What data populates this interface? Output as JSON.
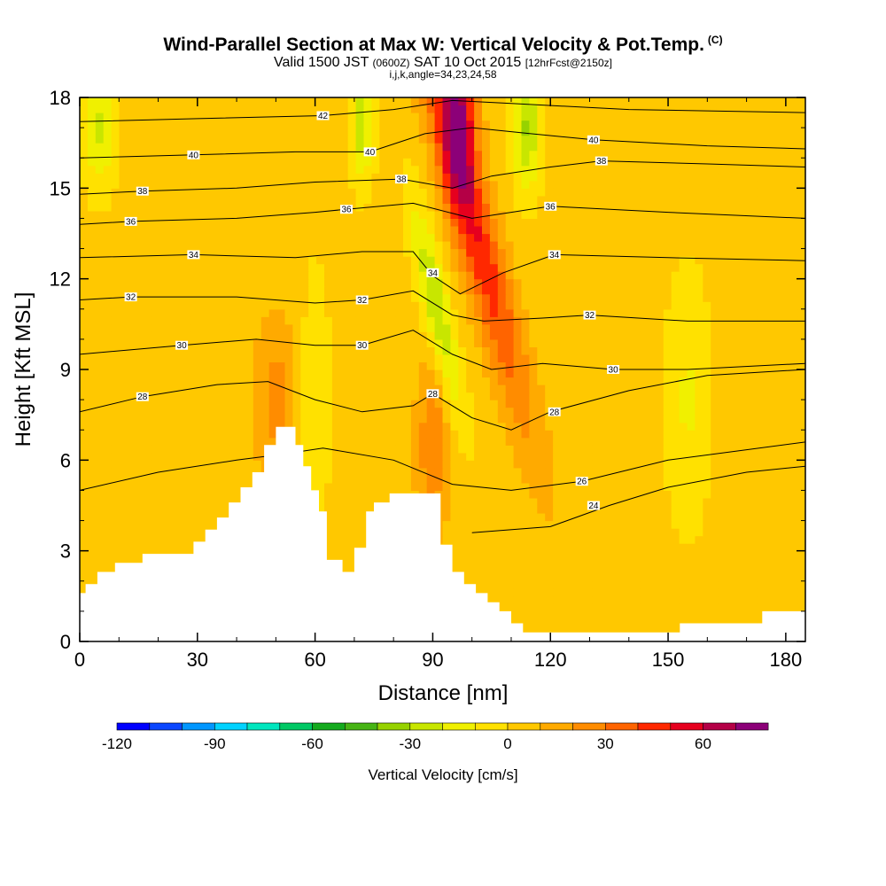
{
  "title": "Wind-Parallel Section at Max W: Vertical Velocity & Pot.Temp.",
  "copyright": "(C)",
  "subtitle_main": "Valid 1500 JST",
  "subtitle_zulu": "(0600Z)",
  "subtitle_date": "SAT 10 Oct 2015",
  "subtitle_fcst": "[12hrFcst@2150z]",
  "subtitle2": "i,j,k,angle=34,23,24,58",
  "colors": {
    "terrain": "#ffffff",
    "contour": "#000000",
    "frame": "#000000"
  },
  "chart_data": {
    "type": "heatmap",
    "xlabel": "Distance [nm]",
    "ylabel": "Height [Kft MSL]",
    "xlim": [
      0,
      185
    ],
    "ylim": [
      0,
      18
    ],
    "x_ticks": [
      0,
      30,
      60,
      90,
      120,
      150,
      180
    ],
    "y_ticks": [
      0,
      3,
      6,
      9,
      12,
      15,
      18
    ],
    "colorbar": {
      "label": "Vertical Velocity [cm/s]",
      "range": [
        -120,
        80
      ],
      "tick_values": [
        -120,
        -90,
        -60,
        -30,
        0,
        30,
        60
      ],
      "tick_labels": [
        "-120",
        "-90",
        "-60",
        "-30",
        "0",
        "30",
        "60"
      ],
      "bins": [
        {
          "from": -120,
          "to": -110,
          "color": "#0000ff"
        },
        {
          "from": -110,
          "to": -100,
          "color": "#0a46ff"
        },
        {
          "from": -100,
          "to": -90,
          "color": "#0096ff"
        },
        {
          "from": -90,
          "to": -80,
          "color": "#00d2ff"
        },
        {
          "from": -80,
          "to": -70,
          "color": "#00e6be"
        },
        {
          "from": -70,
          "to": -60,
          "color": "#00c864"
        },
        {
          "from": -60,
          "to": -50,
          "color": "#14aa1e"
        },
        {
          "from": -50,
          "to": -40,
          "color": "#46b414"
        },
        {
          "from": -40,
          "to": -30,
          "color": "#96d200"
        },
        {
          "from": -30,
          "to": -20,
          "color": "#c8e600"
        },
        {
          "from": -20,
          "to": -10,
          "color": "#f0f000"
        },
        {
          "from": -10,
          "to": 0,
          "color": "#ffe100"
        },
        {
          "from": 0,
          "to": 10,
          "color": "#ffc800"
        },
        {
          "from": 10,
          "to": 20,
          "color": "#ffaa00"
        },
        {
          "from": 20,
          "to": 30,
          "color": "#ff8c00"
        },
        {
          "from": 30,
          "to": 40,
          "color": "#ff6400"
        },
        {
          "from": 40,
          "to": 50,
          "color": "#ff2800"
        },
        {
          "from": 50,
          "to": 60,
          "color": "#e6001e"
        },
        {
          "from": 60,
          "to": 70,
          "color": "#b40046"
        },
        {
          "from": 70,
          "to": 80,
          "color": "#8c0078"
        }
      ]
    },
    "terrain_profile": [
      [
        0,
        1.6
      ],
      [
        1.5,
        1.6
      ],
      [
        1.5,
        1.9
      ],
      [
        4.5,
        1.9
      ],
      [
        4.5,
        2.3
      ],
      [
        9,
        2.3
      ],
      [
        9,
        2.6
      ],
      [
        16,
        2.6
      ],
      [
        16,
        2.9
      ],
      [
        29,
        2.9
      ],
      [
        29,
        3.3
      ],
      [
        32,
        3.3
      ],
      [
        32,
        3.7
      ],
      [
        35,
        3.7
      ],
      [
        35,
        4.1
      ],
      [
        38,
        4.1
      ],
      [
        38,
        4.6
      ],
      [
        41,
        4.6
      ],
      [
        41,
        5.1
      ],
      [
        44,
        5.1
      ],
      [
        44,
        5.6
      ],
      [
        47,
        5.6
      ],
      [
        47,
        6.5
      ],
      [
        50,
        6.5
      ],
      [
        50,
        7.1
      ],
      [
        55,
        7.1
      ],
      [
        55,
        6.5
      ],
      [
        57,
        6.5
      ],
      [
        57,
        5.8
      ],
      [
        59,
        5.8
      ],
      [
        59,
        5.0
      ],
      [
        61,
        5.0
      ],
      [
        61,
        4.3
      ],
      [
        63,
        4.3
      ],
      [
        63,
        2.7
      ],
      [
        67,
        2.7
      ],
      [
        67,
        2.3
      ],
      [
        70,
        2.3
      ],
      [
        70,
        3.1
      ],
      [
        73,
        3.1
      ],
      [
        73,
        4.3
      ],
      [
        75,
        4.3
      ],
      [
        75,
        4.6
      ],
      [
        79,
        4.6
      ],
      [
        79,
        4.9
      ],
      [
        92,
        4.9
      ],
      [
        92,
        3.2
      ],
      [
        95,
        3.2
      ],
      [
        95,
        2.3
      ],
      [
        98,
        2.3
      ],
      [
        98,
        1.9
      ],
      [
        101,
        1.9
      ],
      [
        101,
        1.6
      ],
      [
        104,
        1.6
      ],
      [
        104,
        1.3
      ],
      [
        107,
        1.3
      ],
      [
        107,
        1.0
      ],
      [
        110,
        1.0
      ],
      [
        110,
        0.6
      ],
      [
        113,
        0.6
      ],
      [
        113,
        0.3
      ],
      [
        153,
        0.3
      ],
      [
        153,
        0.6
      ],
      [
        174,
        0.6
      ],
      [
        174,
        1.0
      ],
      [
        185,
        1.0
      ],
      [
        185,
        0
      ]
    ],
    "theta_contours": [
      {
        "label": "24",
        "label_at": [
          131,
          4.5
        ],
        "points": [
          [
            100,
            3.6
          ],
          [
            120,
            3.8
          ],
          [
            135,
            4.5
          ],
          [
            150,
            5.1
          ],
          [
            170,
            5.6
          ],
          [
            185,
            5.8
          ]
        ]
      },
      {
        "label": "26",
        "label_at": [
          128,
          5.3
        ],
        "points": [
          [
            0,
            5.0
          ],
          [
            20,
            5.6
          ],
          [
            40,
            6.0
          ],
          [
            52,
            6.2
          ],
          [
            62,
            6.4
          ],
          [
            80,
            6.0
          ],
          [
            95,
            5.2
          ],
          [
            110,
            5.0
          ],
          [
            128,
            5.3
          ],
          [
            150,
            6.0
          ],
          [
            185,
            6.6
          ]
        ]
      },
      {
        "label": "28",
        "label_at": [
          16,
          8.1
        ],
        "points": [
          [
            0,
            7.6
          ],
          [
            16,
            8.1
          ],
          [
            35,
            8.5
          ],
          [
            48,
            8.6
          ],
          [
            60,
            8.0
          ],
          [
            72,
            7.6
          ],
          [
            85,
            7.8
          ],
          [
            90,
            8.2
          ],
          [
            100,
            7.4
          ],
          [
            110,
            7.0
          ],
          [
            120,
            7.6
          ],
          [
            140,
            8.3
          ],
          [
            160,
            8.8
          ],
          [
            185,
            9.0
          ]
        ]
      },
      {
        "label": "28",
        "label_at": [
          90,
          8.2
        ],
        "points": []
      },
      {
        "label": "28",
        "label_at": [
          121,
          7.6
        ],
        "points": []
      },
      {
        "label": "30",
        "label_at": [
          26,
          9.8
        ],
        "points": [
          [
            0,
            9.5
          ],
          [
            26,
            9.8
          ],
          [
            45,
            10.0
          ],
          [
            60,
            9.8
          ],
          [
            72,
            9.8
          ],
          [
            85,
            10.3
          ],
          [
            95,
            9.5
          ],
          [
            105,
            9.0
          ],
          [
            118,
            9.2
          ],
          [
            136,
            9.0
          ],
          [
            155,
            9.0
          ],
          [
            185,
            9.2
          ]
        ]
      },
      {
        "label": "30",
        "label_at": [
          72,
          9.8
        ],
        "points": []
      },
      {
        "label": "30",
        "label_at": [
          136,
          9.0
        ],
        "points": []
      },
      {
        "label": "32",
        "label_at": [
          13,
          11.4
        ],
        "points": [
          [
            0,
            11.3
          ],
          [
            13,
            11.4
          ],
          [
            40,
            11.4
          ],
          [
            60,
            11.2
          ],
          [
            72,
            11.3
          ],
          [
            85,
            11.6
          ],
          [
            95,
            10.8
          ],
          [
            103,
            10.6
          ],
          [
            118,
            10.7
          ],
          [
            130,
            10.8
          ],
          [
            155,
            10.6
          ],
          [
            185,
            10.6
          ]
        ]
      },
      {
        "label": "32",
        "label_at": [
          72,
          11.3
        ],
        "points": []
      },
      {
        "label": "32",
        "label_at": [
          130,
          10.8
        ],
        "points": []
      },
      {
        "label": "34",
        "label_at": [
          29,
          12.8
        ],
        "points": [
          [
            0,
            12.7
          ],
          [
            29,
            12.8
          ],
          [
            55,
            12.7
          ],
          [
            72,
            12.9
          ],
          [
            85,
            12.9
          ],
          [
            90,
            12.1
          ],
          [
            97,
            11.5
          ],
          [
            108,
            12.2
          ],
          [
            121,
            12.8
          ],
          [
            150,
            12.7
          ],
          [
            185,
            12.6
          ]
        ]
      },
      {
        "label": "34",
        "label_at": [
          90,
          12.2
        ],
        "points": []
      },
      {
        "label": "34",
        "label_at": [
          121,
          12.8
        ],
        "points": []
      },
      {
        "label": "36",
        "label_at": [
          13,
          13.9
        ],
        "points": [
          [
            0,
            13.8
          ],
          [
            13,
            13.9
          ],
          [
            40,
            14.0
          ],
          [
            60,
            14.2
          ],
          [
            68,
            14.3
          ],
          [
            85,
            14.5
          ],
          [
            100,
            14.0
          ],
          [
            110,
            14.2
          ],
          [
            120,
            14.4
          ],
          [
            150,
            14.2
          ],
          [
            185,
            14.0
          ]
        ]
      },
      {
        "label": "36",
        "label_at": [
          68,
          14.3
        ],
        "points": []
      },
      {
        "label": "36",
        "label_at": [
          120,
          14.4
        ],
        "points": []
      },
      {
        "label": "38",
        "label_at": [
          16,
          14.9
        ],
        "points": [
          [
            0,
            14.8
          ],
          [
            16,
            14.9
          ],
          [
            40,
            15.0
          ],
          [
            60,
            15.2
          ],
          [
            82,
            15.3
          ],
          [
            95,
            15.0
          ],
          [
            105,
            15.4
          ],
          [
            120,
            15.7
          ],
          [
            133,
            15.9
          ],
          [
            160,
            15.8
          ],
          [
            185,
            15.7
          ]
        ]
      },
      {
        "label": "38",
        "label_at": [
          82,
          15.3
        ],
        "points": []
      },
      {
        "label": "38",
        "label_at": [
          133,
          15.9
        ],
        "points": []
      },
      {
        "label": "40",
        "label_at": [
          29,
          16.1
        ],
        "points": [
          [
            0,
            16.0
          ],
          [
            29,
            16.1
          ],
          [
            55,
            16.2
          ],
          [
            74,
            16.2
          ],
          [
            88,
            16.8
          ],
          [
            100,
            17.0
          ],
          [
            115,
            16.8
          ],
          [
            131,
            16.6
          ],
          [
            160,
            16.4
          ],
          [
            185,
            16.3
          ]
        ]
      },
      {
        "label": "40",
        "label_at": [
          74,
          16.2
        ],
        "points": []
      },
      {
        "label": "40",
        "label_at": [
          131,
          16.6
        ],
        "points": []
      },
      {
        "label": "42",
        "label_at": [
          62,
          17.4
        ],
        "points": [
          [
            0,
            17.2
          ],
          [
            30,
            17.3
          ],
          [
            62,
            17.4
          ],
          [
            80,
            17.6
          ],
          [
            95,
            17.9
          ],
          [
            110,
            17.8
          ],
          [
            140,
            17.6
          ],
          [
            185,
            17.5
          ]
        ]
      }
    ],
    "w_field_features": [
      {
        "type": "updraft",
        "x": 100,
        "y": 14.0,
        "peak": 45,
        "sx": 4,
        "sy": 5,
        "tilt": -2.0
      },
      {
        "type": "updraft",
        "x": 97,
        "y": 17.5,
        "peak": 50,
        "sx": 3,
        "sy": 2,
        "tilt": 0
      },
      {
        "type": "updraft",
        "x": 90,
        "y": 6.5,
        "peak": 25,
        "sx": 3,
        "sy": 2,
        "tilt": 0
      },
      {
        "type": "updraft",
        "x": 50,
        "y": 8.0,
        "peak": 20,
        "sx": 4,
        "sy": 2,
        "tilt": 0
      },
      {
        "type": "downdraft",
        "x": 91,
        "y": 11.0,
        "peak": -35,
        "sx": 2.5,
        "sy": 2.5,
        "tilt": -1.5
      },
      {
        "type": "downdraft",
        "x": 114,
        "y": 17.0,
        "peak": -35,
        "sx": 2.5,
        "sy": 1.5,
        "tilt": 0
      },
      {
        "type": "downdraft",
        "x": 72,
        "y": 17.2,
        "peak": -30,
        "sx": 2,
        "sy": 1.5,
        "tilt": 0
      },
      {
        "type": "downdraft",
        "x": 5,
        "y": 17.0,
        "peak": -25,
        "sx": 3,
        "sy": 1.5,
        "tilt": 0
      },
      {
        "type": "downdraft",
        "x": 60,
        "y": 8.0,
        "peak": -15,
        "sx": 2.5,
        "sy": 3,
        "tilt": 0
      },
      {
        "type": "downdraft",
        "x": 155,
        "y": 8.0,
        "peak": -15,
        "sx": 4,
        "sy": 3,
        "tilt": 0
      }
    ]
  }
}
